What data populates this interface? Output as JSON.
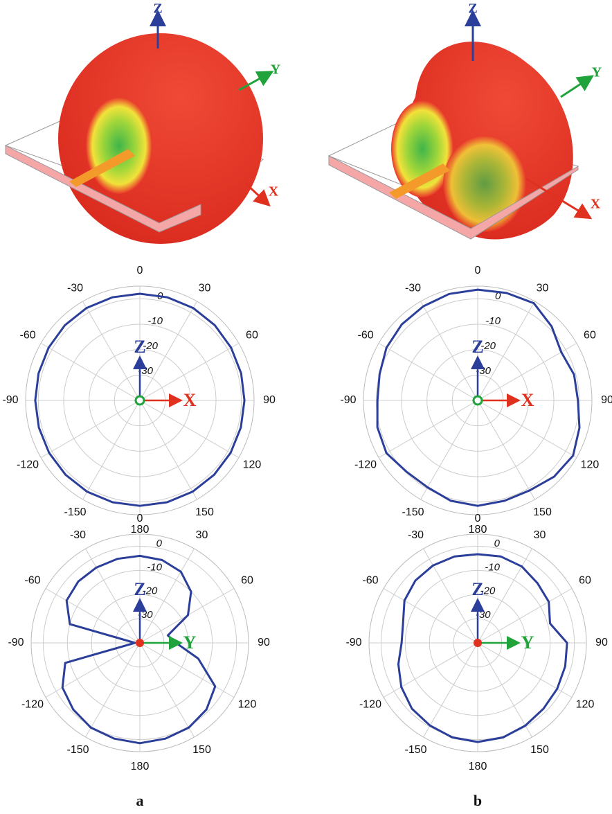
{
  "renders": [
    {
      "axis_labels": [
        "Z",
        "Y",
        "X"
      ]
    },
    {
      "axis_labels": [
        "Z",
        "Y",
        "X"
      ]
    }
  ],
  "panel_labels": [
    "a",
    "b"
  ],
  "chart_data": [
    {
      "type": "polar",
      "color": "#2b3f9a",
      "rlim": [
        -40,
        5
      ],
      "rticks": [
        -30,
        -20,
        -10,
        0
      ],
      "thetaticks": [
        0,
        30,
        60,
        90,
        120,
        150,
        180,
        -150,
        -120,
        -90,
        -60,
        -30
      ],
      "annotations": [
        "Z",
        "X"
      ],
      "theta": [
        0,
        15,
        30,
        45,
        60,
        75,
        90,
        105,
        120,
        135,
        150,
        165,
        180,
        195,
        210,
        225,
        240,
        255,
        270,
        285,
        300,
        315,
        330,
        345
      ],
      "values": [
        2,
        2,
        2,
        1.8,
        1.5,
        1.3,
        1.2,
        1.2,
        1.3,
        1.4,
        1.5,
        1.5,
        1.5,
        1.5,
        1.5,
        1.4,
        1.3,
        1.2,
        1.2,
        1.3,
        1.5,
        1.8,
        2,
        2
      ]
    },
    {
      "type": "polar",
      "color": "#2b3f9a",
      "rlim": [
        -40,
        5
      ],
      "rticks": [
        -30,
        -20,
        -10,
        0
      ],
      "thetaticks": [
        0,
        30,
        60,
        90,
        120,
        150,
        180,
        -150,
        -120,
        -90,
        -60,
        -30
      ],
      "annotations": [
        "Z",
        "X"
      ],
      "theta": [
        0,
        15,
        30,
        45,
        60,
        75,
        90,
        105,
        120,
        135,
        150,
        165,
        180,
        195,
        210,
        225,
        240,
        255,
        270,
        285,
        300,
        315,
        330,
        345
      ],
      "values": [
        3.6,
        3.8,
        4.2,
        1.2,
        -2,
        -0.7,
        -0.5,
        1.5,
        3.4,
        2.5,
        0.9,
        0.9,
        1.5,
        0.9,
        -0.5,
        -0.3,
        1.5,
        0.9,
        -0.5,
        0,
        1.5,
        2.3,
        2.8,
        3.4
      ]
    },
    {
      "type": "polar",
      "color": "#2b3f9a",
      "rlim": [
        -40,
        5
      ],
      "rticks": [
        -30,
        -20,
        -10,
        0
      ],
      "thetaticks": [
        0,
        30,
        60,
        90,
        120,
        150,
        180,
        -150,
        -120,
        -90,
        -60,
        -30
      ],
      "annotations": [
        "Z",
        "Y"
      ],
      "theta": [
        0,
        15,
        30,
        45,
        60,
        75,
        90,
        105,
        120,
        135,
        150,
        165,
        180,
        195,
        210,
        225,
        240,
        255,
        270,
        285,
        300,
        315,
        330,
        345
      ],
      "values": [
        -4,
        -4.5,
        -6,
        -10,
        -17,
        -28,
        -25,
        -15,
        -4,
        -1,
        0.5,
        1,
        1.5,
        1,
        0.5,
        -1,
        -3,
        -8,
        -38,
        -10,
        -5,
        -4,
        -4,
        -4
      ]
    },
    {
      "type": "polar",
      "color": "#2b3f9a",
      "rlim": [
        -40,
        5
      ],
      "rticks": [
        -30,
        -20,
        -10,
        0
      ],
      "thetaticks": [
        0,
        30,
        60,
        90,
        120,
        150,
        180,
        -150,
        -120,
        -90,
        -60,
        -30
      ],
      "annotations": [
        "Z",
        "Y"
      ],
      "theta": [
        0,
        15,
        30,
        45,
        60,
        75,
        90,
        105,
        120,
        135,
        150,
        165,
        180,
        195,
        210,
        225,
        240,
        255,
        270,
        285,
        300,
        315,
        330,
        345
      ],
      "values": [
        -3.3,
        -3,
        -3.5,
        -5,
        -6,
        -9,
        -3,
        -2.5,
        -2,
        -1.5,
        -0.5,
        0.5,
        1,
        0.5,
        -0.5,
        -1.5,
        -3.5,
        -6,
        -8.5,
        -8,
        -5,
        -3.5,
        -3,
        -3
      ]
    }
  ]
}
